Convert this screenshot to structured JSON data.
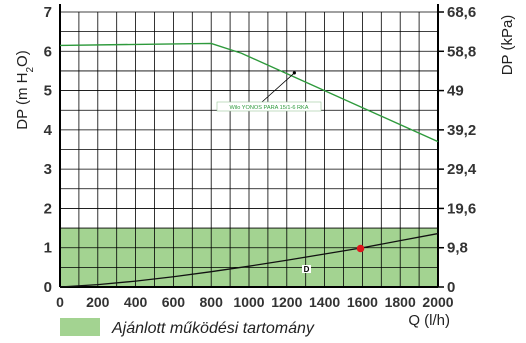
{
  "chart_data": {
    "type": "line",
    "x_unit_label": "Q (l/h)",
    "ylabel_left": {
      "pre": "DP (m H",
      "sub": "2",
      "post": "O)"
    },
    "ylabel_right": "DP (kPa)",
    "xlim": [
      0,
      2000
    ],
    "ylim": [
      0,
      7
    ],
    "x_ticks": [
      0,
      200,
      400,
      600,
      800,
      1000,
      1200,
      1400,
      1600,
      1800,
      2000
    ],
    "y_ticks_left": [
      "0",
      "1",
      "2",
      "3",
      "4",
      "5",
      "6",
      "7"
    ],
    "y_ticks_right": [
      {
        "label": "0",
        "at": 0
      },
      {
        "label": "9,8",
        "at": 1
      },
      {
        "label": "19,6",
        "at": 2
      },
      {
        "label": "29,4",
        "at": 3
      },
      {
        "label": "39,2",
        "at": 4
      },
      {
        "label": "49",
        "at": 5
      },
      {
        "label": "58,8",
        "at": 6
      },
      {
        "label": "68,6",
        "at": 7
      }
    ],
    "grid": true,
    "recommended_range": {
      "y_min": 0,
      "y_max": 1.5,
      "color": "#a3d391"
    },
    "series": [
      {
        "name": "Wilo YONOS PARA 15/1-6 RKA",
        "color": "#2e9a3c",
        "x": [
          0,
          800,
          960,
          2000
        ],
        "y": [
          6.15,
          6.2,
          5.95,
          3.7
        ]
      },
      {
        "name": "",
        "color": "#111111",
        "x": [
          0,
          200,
          400,
          600,
          800,
          1000,
          1200,
          1400,
          1600,
          1800,
          2000
        ],
        "y": [
          0,
          0.06,
          0.15,
          0.26,
          0.39,
          0.53,
          0.68,
          0.84,
          1.0,
          1.18,
          1.36
        ]
      }
    ],
    "operating_point": {
      "x": 1590,
      "y": 0.98,
      "color": "#e0161b"
    },
    "system_curve_marker": "D",
    "legend": {
      "label": "Ajánlott működési tartomány",
      "color": "#a3d391",
      "position": "bottom-left"
    }
  }
}
